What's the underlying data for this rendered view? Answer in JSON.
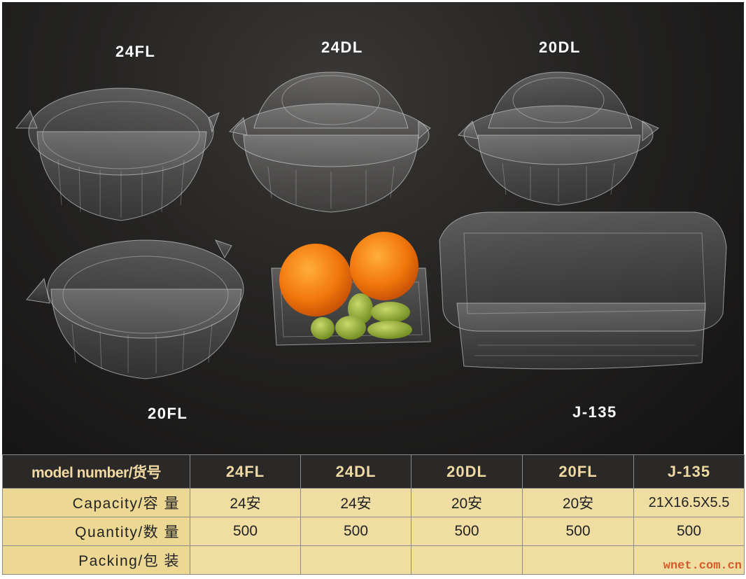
{
  "products": {
    "p1": "24FL",
    "p2": "24DL",
    "p3": "20DL",
    "p4": "20FL",
    "p5": "J-135"
  },
  "table": {
    "header": [
      "model number/货号",
      "24FL",
      "24DL",
      "20DL",
      "20FL",
      "J-135"
    ],
    "rows": [
      {
        "label": "Capacity/容 量",
        "values": [
          "24安",
          "24安",
          "20安",
          "20安",
          "21X16.5X5.5"
        ]
      },
      {
        "label": "Quantity/数 量",
        "values": [
          "500",
          "500",
          "500",
          "500",
          "500"
        ]
      },
      {
        "label": "Packing/包 装",
        "values": [
          "",
          "",
          "",
          "",
          ""
        ]
      }
    ]
  },
  "watermark": "wnet.com.cn",
  "colors": {
    "background": "#1e1d1c",
    "header_bg": "#2a2928",
    "header_text": "#f1d9a3",
    "row_bg": "#efdda2",
    "orange": "#f07a10",
    "olive": "#8aa23a"
  }
}
